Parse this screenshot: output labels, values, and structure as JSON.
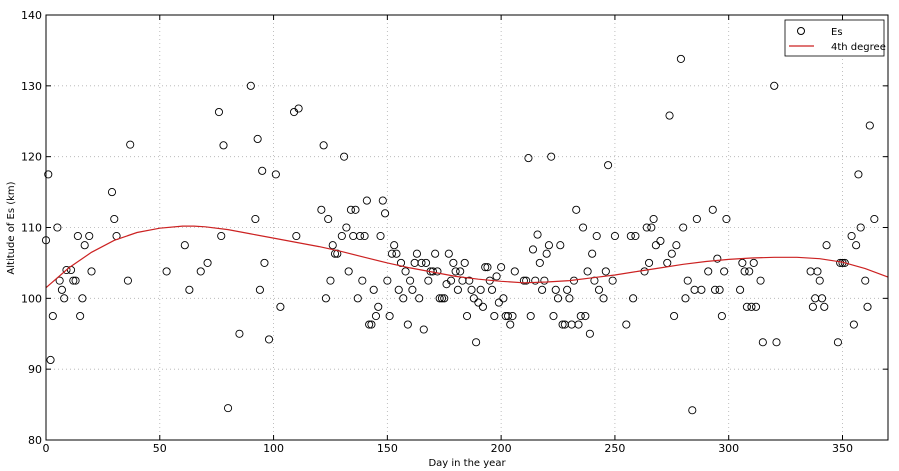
{
  "chart_data": {
    "type": "scatter",
    "xlabel": "Day in the year",
    "ylabel": "Altitude of Es (km)",
    "xlim": [
      0,
      370
    ],
    "ylim": [
      80,
      140
    ],
    "xticks": [
      0,
      50,
      100,
      150,
      200,
      250,
      300,
      350
    ],
    "yticks": [
      80,
      90,
      100,
      110,
      120,
      130,
      140
    ],
    "grid": true,
    "legend_position": "top-right",
    "colors": {
      "points": "#000000",
      "fit": "#cc2222",
      "grid": "#b0b0b0"
    },
    "legend": [
      {
        "label": "Es",
        "marker": "circle"
      },
      {
        "label": "4th degree",
        "marker": "line"
      }
    ],
    "fit": {
      "name": "4th degree",
      "x": [
        0,
        10,
        20,
        30,
        40,
        50,
        60,
        65,
        70,
        80,
        90,
        100,
        110,
        120,
        130,
        140,
        150,
        160,
        170,
        180,
        190,
        200,
        210,
        220,
        230,
        240,
        250,
        260,
        270,
        280,
        290,
        300,
        310,
        320,
        330,
        340,
        350,
        360,
        370
      ],
      "y": [
        101.5,
        104.3,
        106.5,
        108.2,
        109.3,
        109.9,
        110.2,
        110.2,
        110.1,
        109.7,
        109.1,
        108.5,
        107.9,
        107.3,
        106.6,
        105.8,
        105.0,
        104.3,
        103.7,
        103.1,
        102.7,
        102.4,
        102.2,
        102.3,
        102.5,
        102.9,
        103.3,
        103.8,
        104.3,
        104.8,
        105.2,
        105.5,
        105.7,
        105.8,
        105.8,
        105.6,
        105.1,
        104.2,
        103.0
      ]
    },
    "series": [
      {
        "name": "Es",
        "points": [
          [
            0,
            108.2
          ],
          [
            1,
            117.5
          ],
          [
            2,
            91.3
          ],
          [
            3,
            97.5
          ],
          [
            5,
            110
          ],
          [
            6,
            102.5
          ],
          [
            7,
            101.2
          ],
          [
            8,
            100
          ],
          [
            9,
            104
          ],
          [
            11,
            104
          ],
          [
            12,
            102.5
          ],
          [
            13,
            102.5
          ],
          [
            14,
            108.8
          ],
          [
            15,
            97.5
          ],
          [
            16,
            100
          ],
          [
            17,
            107.5
          ],
          [
            19,
            108.8
          ],
          [
            20,
            103.8
          ],
          [
            29,
            115
          ],
          [
            30,
            111.2
          ],
          [
            31,
            108.8
          ],
          [
            36,
            102.5
          ],
          [
            37,
            121.7
          ],
          [
            53,
            103.8
          ],
          [
            61,
            107.5
          ],
          [
            63,
            101.2
          ],
          [
            68,
            103.8
          ],
          [
            71,
            105
          ],
          [
            76,
            126.3
          ],
          [
            77,
            108.8
          ],
          [
            78,
            121.6
          ],
          [
            80,
            84.5
          ],
          [
            85,
            95
          ],
          [
            90,
            130
          ],
          [
            92,
            111.2
          ],
          [
            93,
            122.5
          ],
          [
            94,
            101.2
          ],
          [
            95,
            118
          ],
          [
            96,
            105
          ],
          [
            98,
            94.2
          ],
          [
            101,
            117.5
          ],
          [
            103,
            98.8
          ],
          [
            109,
            126.3
          ],
          [
            110,
            108.8
          ],
          [
            111,
            126.8
          ],
          [
            121,
            112.5
          ],
          [
            122,
            121.6
          ],
          [
            123,
            100
          ],
          [
            124,
            111.2
          ],
          [
            125,
            102.5
          ],
          [
            126,
            107.5
          ],
          [
            127,
            106.3
          ],
          [
            128,
            106.3
          ],
          [
            130,
            108.8
          ],
          [
            131,
            120
          ],
          [
            132,
            110
          ],
          [
            133,
            103.8
          ],
          [
            134,
            112.5
          ],
          [
            135,
            108.8
          ],
          [
            136,
            112.5
          ],
          [
            137,
            100
          ],
          [
            138,
            108.8
          ],
          [
            139,
            102.5
          ],
          [
            140,
            108.8
          ],
          [
            141,
            113.8
          ],
          [
            142,
            96.3
          ],
          [
            143,
            96.3
          ],
          [
            144,
            101.2
          ],
          [
            145,
            97.5
          ],
          [
            146,
            98.8
          ],
          [
            147,
            108.8
          ],
          [
            148,
            113.8
          ],
          [
            149,
            112
          ],
          [
            150,
            102.5
          ],
          [
            151,
            97.5
          ],
          [
            152,
            106.3
          ],
          [
            153,
            107.5
          ],
          [
            154,
            106.3
          ],
          [
            155,
            101.2
          ],
          [
            156,
            105
          ],
          [
            157,
            100
          ],
          [
            158,
            103.8
          ],
          [
            159,
            96.3
          ],
          [
            160,
            102.5
          ],
          [
            161,
            101.2
          ],
          [
            162,
            105
          ],
          [
            163,
            106.3
          ],
          [
            164,
            100
          ],
          [
            165,
            105
          ],
          [
            166,
            95.6
          ],
          [
            167,
            105
          ],
          [
            168,
            102.5
          ],
          [
            169,
            103.8
          ],
          [
            170,
            103.8
          ],
          [
            171,
            106.3
          ],
          [
            172,
            103.8
          ],
          [
            173,
            100
          ],
          [
            174,
            100
          ],
          [
            175,
            100
          ],
          [
            176,
            102
          ],
          [
            177,
            106.3
          ],
          [
            178,
            102.5
          ],
          [
            179,
            105
          ],
          [
            180,
            103.8
          ],
          [
            181,
            101.2
          ],
          [
            182,
            103.8
          ],
          [
            183,
            102.5
          ],
          [
            184,
            105
          ],
          [
            185,
            97.5
          ],
          [
            186,
            102.5
          ],
          [
            187,
            101.2
          ],
          [
            188,
            100
          ],
          [
            189,
            93.8
          ],
          [
            190,
            99.4
          ],
          [
            191,
            101.2
          ],
          [
            192,
            98.8
          ],
          [
            193,
            104.4
          ],
          [
            194,
            104.4
          ],
          [
            195,
            102.5
          ],
          [
            196,
            101.2
          ],
          [
            197,
            97.5
          ],
          [
            198,
            103.1
          ],
          [
            199,
            99.4
          ],
          [
            200,
            104.4
          ],
          [
            201,
            100
          ],
          [
            202,
            97.5
          ],
          [
            203,
            97.5
          ],
          [
            204,
            96.3
          ],
          [
            205,
            97.5
          ],
          [
            206,
            103.8
          ],
          [
            210,
            102.5
          ],
          [
            211,
            102.5
          ],
          [
            212,
            119.8
          ],
          [
            213,
            97.5
          ],
          [
            214,
            106.9
          ],
          [
            215,
            102.5
          ],
          [
            216,
            109
          ],
          [
            217,
            105
          ],
          [
            218,
            101.2
          ],
          [
            219,
            102.5
          ],
          [
            220,
            106.3
          ],
          [
            221,
            107.5
          ],
          [
            222,
            120
          ],
          [
            223,
            97.5
          ],
          [
            224,
            101.2
          ],
          [
            225,
            100
          ],
          [
            226,
            107.5
          ],
          [
            227,
            96.3
          ],
          [
            228,
            96.3
          ],
          [
            229,
            101.2
          ],
          [
            230,
            100
          ],
          [
            231,
            96.3
          ],
          [
            232,
            102.5
          ],
          [
            233,
            112.5
          ],
          [
            234,
            96.3
          ],
          [
            235,
            97.5
          ],
          [
            236,
            110
          ],
          [
            237,
            97.5
          ],
          [
            238,
            103.8
          ],
          [
            239,
            95
          ],
          [
            240,
            106.3
          ],
          [
            241,
            102.5
          ],
          [
            242,
            108.8
          ],
          [
            243,
            101.2
          ],
          [
            245,
            100
          ],
          [
            246,
            103.8
          ],
          [
            247,
            118.8
          ],
          [
            249,
            102.5
          ],
          [
            250,
            108.8
          ],
          [
            255,
            96.3
          ],
          [
            257,
            108.8
          ],
          [
            258,
            100
          ],
          [
            259,
            108.8
          ],
          [
            263,
            103.8
          ],
          [
            264,
            110
          ],
          [
            265,
            105
          ],
          [
            266,
            110
          ],
          [
            267,
            111.2
          ],
          [
            268,
            107.5
          ],
          [
            270,
            108.1
          ],
          [
            273,
            105
          ],
          [
            274,
            125.8
          ],
          [
            275,
            106.3
          ],
          [
            276,
            97.5
          ],
          [
            277,
            107.5
          ],
          [
            279,
            133.8
          ],
          [
            280,
            110
          ],
          [
            281,
            100
          ],
          [
            282,
            102.5
          ],
          [
            284,
            84.2
          ],
          [
            285,
            101.2
          ],
          [
            286,
            111.2
          ],
          [
            288,
            101.2
          ],
          [
            291,
            103.8
          ],
          [
            293,
            112.5
          ],
          [
            294,
            101.2
          ],
          [
            295,
            105.6
          ],
          [
            296,
            101.2
          ],
          [
            297,
            97.5
          ],
          [
            298,
            103.8
          ],
          [
            299,
            111.2
          ],
          [
            305,
            101.2
          ],
          [
            306,
            105
          ],
          [
            307,
            103.8
          ],
          [
            308,
            98.8
          ],
          [
            309,
            103.8
          ],
          [
            310,
            98.8
          ],
          [
            311,
            105
          ],
          [
            312,
            98.8
          ],
          [
            314,
            102.5
          ],
          [
            315,
            93.8
          ],
          [
            320,
            130
          ],
          [
            321,
            93.8
          ],
          [
            336,
            103.8
          ],
          [
            337,
            98.8
          ],
          [
            338,
            100
          ],
          [
            339,
            103.8
          ],
          [
            340,
            102.5
          ],
          [
            341,
            100
          ],
          [
            342,
            98.8
          ],
          [
            343,
            107.5
          ],
          [
            348,
            93.8
          ],
          [
            349,
            105
          ],
          [
            350,
            105
          ],
          [
            351,
            105
          ],
          [
            354,
            108.8
          ],
          [
            355,
            96.3
          ],
          [
            356,
            107.5
          ],
          [
            357,
            117.5
          ],
          [
            358,
            110
          ],
          [
            360,
            102.5
          ],
          [
            361,
            98.8
          ],
          [
            362,
            124.4
          ],
          [
            364,
            111.2
          ]
        ]
      }
    ]
  }
}
